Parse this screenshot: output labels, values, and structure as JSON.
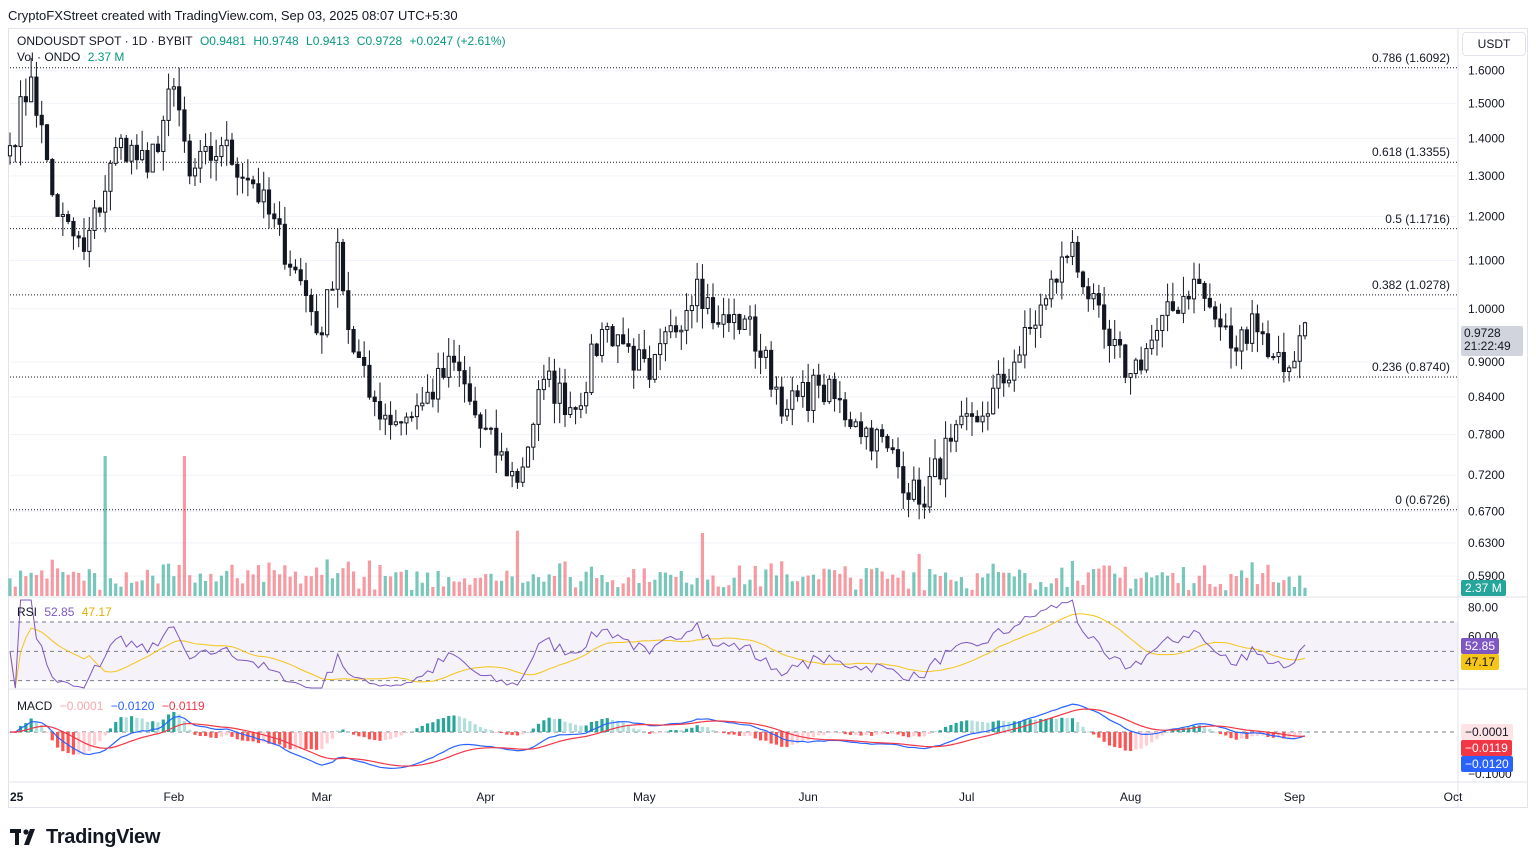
{
  "header": {
    "text": "CryptoFXStreet created with TradingView.com, Sep 03, 2025 08:07 UTC+5:30"
  },
  "legend": {
    "symbol": "ONDOUSDT SPOT · 1D · BYBIT",
    "open": "O0.9481",
    "high": "H0.9748",
    "low": "L0.9413",
    "close": "C0.9728",
    "change": "+0.0247 (+2.61%)",
    "vol_label": "Vol · ONDO",
    "vol_value": "2.37 M"
  },
  "currency_button": "USDT",
  "price_tag": {
    "value": "0.9728",
    "countdown": "21:22:49"
  },
  "volume_tag": "2.37 M",
  "rsi_legend": {
    "label": "RSI",
    "value": "52.85",
    "ma": "47.17"
  },
  "macd_legend": {
    "label": "MACD",
    "hist": "−0.0001",
    "macd": "−0.0120",
    "signal": "−0.0119"
  },
  "rsi_tags": {
    "rsi": "52.85",
    "ma": "47.17"
  },
  "macd_tags": {
    "hist": "−0.0001",
    "signal": "−0.0119",
    "macd": "−0.0120"
  },
  "footer": {
    "logo_text": "TradingView"
  },
  "colors": {
    "up": "#089981",
    "down": "#f23645",
    "rsi": "#7e57c2",
    "rsi_ma": "#f5c518",
    "macd": "#2962ff",
    "signal": "#ff3d3d"
  },
  "chart_data": {
    "type": "candlestick",
    "title": "ONDOUSDT SPOT · 1D · BYBIT",
    "y_axis_ticks": [
      "1.6000",
      "1.5000",
      "1.4000",
      "1.3000",
      "1.2000",
      "1.1000",
      "1.0000",
      "0.9000",
      "0.8400",
      "0.7800",
      "0.7200",
      "0.6700",
      "0.6300",
      "0.5900"
    ],
    "x_axis_ticks": [
      "25",
      "Feb",
      "Mar",
      "Apr",
      "May",
      "Jun",
      "Jul",
      "Aug",
      "Sep",
      "Oct"
    ],
    "y_scale": "log",
    "fib_levels": [
      {
        "label": "0.786 (1.6092)",
        "value": 1.6092
      },
      {
        "label": "0.618 (1.3355)",
        "value": 1.3355
      },
      {
        "label": "0.5 (1.1716)",
        "value": 1.1716
      },
      {
        "label": "0.382 (1.0278)",
        "value": 1.0278
      },
      {
        "label": "0.236 (0.8740)",
        "value": 0.874
      },
      {
        "label": "0 (0.6726)",
        "value": 0.6726
      }
    ],
    "rsi_axis_ticks": [
      "80.00",
      "60.00"
    ],
    "rsi_levels": [
      70,
      50,
      30
    ],
    "macd_axis_ticks": [
      "−0.1000"
    ],
    "anchors": [
      {
        "date": "2025-01-01",
        "close": 1.38
      },
      {
        "date": "2025-01-05",
        "close": 1.58
      },
      {
        "date": "2025-01-10",
        "close": 1.2
      },
      {
        "date": "2025-01-15",
        "close": 1.12
      },
      {
        "date": "2025-01-22",
        "close": 1.4
      },
      {
        "date": "2025-01-27",
        "close": 1.31
      },
      {
        "date": "2025-02-01",
        "close": 1.55
      },
      {
        "date": "2025-02-04",
        "close": 1.3
      },
      {
        "date": "2025-02-10",
        "close": 1.38
      },
      {
        "date": "2025-02-16",
        "close": 1.28
      },
      {
        "date": "2025-02-24",
        "close": 1.08
      },
      {
        "date": "2025-03-01",
        "close": 0.95
      },
      {
        "date": "2025-03-04",
        "close": 1.14
      },
      {
        "date": "2025-03-06",
        "close": 0.96
      },
      {
        "date": "2025-03-10",
        "close": 0.84
      },
      {
        "date": "2025-03-15",
        "close": 0.8
      },
      {
        "date": "2025-03-20",
        "close": 0.83
      },
      {
        "date": "2025-03-26",
        "close": 0.9
      },
      {
        "date": "2025-03-31",
        "close": 0.79
      },
      {
        "date": "2025-04-07",
        "close": 0.71
      },
      {
        "date": "2025-04-12",
        "close": 0.87
      },
      {
        "date": "2025-04-18",
        "close": 0.82
      },
      {
        "date": "2025-04-23",
        "close": 0.96
      },
      {
        "date": "2025-04-26",
        "close": 0.95
      },
      {
        "date": "2025-05-02",
        "close": 0.87
      },
      {
        "date": "2025-05-11",
        "close": 1.06
      },
      {
        "date": "2025-05-15",
        "close": 0.97
      },
      {
        "date": "2025-05-20",
        "close": 0.98
      },
      {
        "date": "2025-05-28",
        "close": 0.82
      },
      {
        "date": "2025-06-03",
        "close": 0.86
      },
      {
        "date": "2025-06-10",
        "close": 0.8
      },
      {
        "date": "2025-06-16",
        "close": 0.76
      },
      {
        "date": "2025-06-22",
        "close": 0.68
      },
      {
        "date": "2025-06-28",
        "close": 0.77
      },
      {
        "date": "2025-07-03",
        "close": 0.8
      },
      {
        "date": "2025-07-10",
        "close": 0.9
      },
      {
        "date": "2025-07-16",
        "close": 1.02
      },
      {
        "date": "2025-07-21",
        "close": 1.14
      },
      {
        "date": "2025-07-24",
        "close": 1.02
      },
      {
        "date": "2025-07-28",
        "close": 0.93
      },
      {
        "date": "2025-08-01",
        "close": 0.88
      },
      {
        "date": "2025-08-05",
        "close": 0.94
      },
      {
        "date": "2025-08-13",
        "close": 1.06
      },
      {
        "date": "2025-08-17",
        "close": 0.98
      },
      {
        "date": "2025-08-21",
        "close": 0.92
      },
      {
        "date": "2025-08-24",
        "close": 0.99
      },
      {
        "date": "2025-08-28",
        "close": 0.91
      },
      {
        "date": "2025-08-31",
        "close": 0.89
      },
      {
        "date": "2025-09-02",
        "close": 0.9481
      },
      {
        "date": "2025-09-03",
        "open": 0.9481,
        "high": 0.9748,
        "low": 0.9413,
        "close": 0.9728
      }
    ],
    "volume_spikes": [
      {
        "date": "2025-01-19",
        "volume": 6.0
      },
      {
        "date": "2025-02-03",
        "volume": 6.0
      },
      {
        "date": "2025-04-07",
        "volume": 2.8
      },
      {
        "date": "2025-05-12",
        "volume": 2.7
      },
      {
        "date": "2025-06-22",
        "volume": 1.8
      },
      {
        "date": "2025-07-21",
        "volume": 1.5
      }
    ],
    "last_volume": "2.37 M"
  }
}
